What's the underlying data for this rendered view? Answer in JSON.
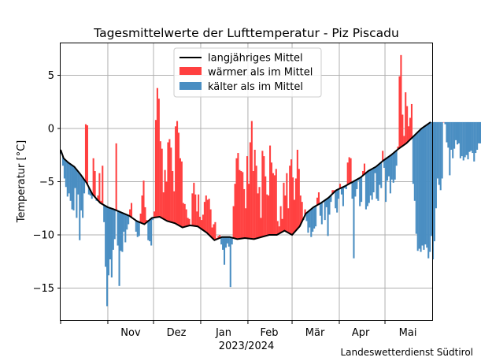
{
  "chart_data": {
    "type": "bar",
    "title": "Tagesmittelwerte der Lufttemperatur - Piz Piscadu",
    "xlabel": "2023/2024",
    "ylabel": "Temperatur [°C]",
    "ylim": [
      -18,
      8
    ],
    "yticks": [
      5,
      0,
      -5,
      -10,
      -15
    ],
    "ytick_labels": [
      "5",
      "0",
      "−5",
      "−10",
      "−15"
    ],
    "grid": true,
    "legend_position": "top-center",
    "x_start": "2023-10-01",
    "x_end": "2024-05-31",
    "month_boundaries": [
      "2023-11-01",
      "2023-12-01",
      "2024-01-01",
      "2024-02-01",
      "2024-03-01",
      "2024-04-01",
      "2024-05-01"
    ],
    "months": [
      {
        "label": "Nov",
        "date": "2023-11-16"
      },
      {
        "label": "Dez",
        "date": "2023-12-16"
      },
      {
        "label": "Jan",
        "date": "2024-01-16"
      },
      {
        "label": "Feb",
        "date": "2024-02-15"
      },
      {
        "label": "Mär",
        "date": "2024-03-16"
      },
      {
        "label": "Apr",
        "date": "2024-04-15"
      },
      {
        "label": "Mai",
        "date": "2024-05-16"
      }
    ],
    "legend": [
      {
        "label": "langjähriges Mittel",
        "color": "#000000"
      },
      {
        "label": "wärmer als im Mittel",
        "color": "#ff4040"
      },
      {
        "label": "kälter als im Mittel",
        "color": "#4a8ec2"
      }
    ],
    "colors": {
      "warm": "#ff4040",
      "cold": "#4a8ec2",
      "mean": "#000000"
    },
    "mean_curve": {
      "dates": [
        "2023-10-01",
        "2023-10-03",
        "2023-10-06",
        "2023-10-10",
        "2023-10-14",
        "2023-10-18",
        "2023-10-22",
        "2023-10-27",
        "2023-11-01",
        "2023-11-05",
        "2023-11-10",
        "2023-11-15",
        "2023-11-20",
        "2023-11-25",
        "2023-11-30",
        "2023-12-05",
        "2023-12-10",
        "2023-12-15",
        "2023-12-20",
        "2023-12-25",
        "2023-12-30",
        "2024-01-05",
        "2024-01-10",
        "2024-01-15",
        "2024-01-20",
        "2024-01-25",
        "2024-01-30",
        "2024-02-05",
        "2024-02-10",
        "2024-02-15",
        "2024-02-20",
        "2024-02-25",
        "2024-03-01",
        "2024-03-06",
        "2024-03-10",
        "2024-03-15",
        "2024-03-20",
        "2024-03-25",
        "2024-03-30",
        "2024-04-05",
        "2024-04-10",
        "2024-04-15",
        "2024-04-20",
        "2024-04-25",
        "2024-04-30",
        "2024-05-05",
        "2024-05-10",
        "2024-05-15",
        "2024-05-20",
        "2024-05-25",
        "2024-05-31"
      ],
      "values": [
        -2.0,
        -2.8,
        -3.2,
        -3.6,
        -4.3,
        -5.1,
        -6.2,
        -7.0,
        -7.4,
        -7.6,
        -7.9,
        -8.2,
        -8.7,
        -9.0,
        -8.4,
        -8.3,
        -8.7,
        -8.9,
        -9.3,
        -9.1,
        -9.2,
        -9.8,
        -10.5,
        -10.2,
        -10.2,
        -10.4,
        -10.3,
        -10.4,
        -10.2,
        -10.0,
        -10.0,
        -9.6,
        -10.0,
        -9.2,
        -8.0,
        -7.4,
        -7.0,
        -6.5,
        -5.8,
        -5.4,
        -5.0,
        -4.6,
        -4.0,
        -3.6,
        -3.0,
        -2.5,
        -1.9,
        -1.4,
        -0.7,
        0.0,
        0.6
      ]
    },
    "daily": {
      "start": "2023-10-01",
      "values": [
        -2.4,
        -3.5,
        -4.7,
        -5.5,
        -6.4,
        -6.1,
        -6.8,
        -7.6,
        -7.7,
        -5.6,
        -8.4,
        -6.2,
        -10.5,
        -7.7,
        -8.4,
        -6.1,
        0.4,
        0.3,
        -6.2,
        -6.3,
        -6.6,
        -2.8,
        -4.0,
        -6.8,
        -6.3,
        -4.2,
        -6.8,
        -3.5,
        -8.8,
        -13.0,
        -16.7,
        -13.8,
        -12.3,
        -14.0,
        -11.4,
        -10.4,
        -1.4,
        -11.0,
        -14.8,
        -11.5,
        -11.6,
        -9.7,
        -10.7,
        -9.5,
        -9.0,
        -7.6,
        -7.0,
        -8.4,
        -8.6,
        -9.7,
        -10.2,
        -10.1,
        -8.0,
        -6.3,
        -4.9,
        -7.4,
        -8.6,
        -10.5,
        -10.6,
        -11.0,
        -8.6,
        -7.8,
        0.8,
        3.8,
        2.8,
        -1.2,
        -1.9,
        -6.0,
        -3.9,
        -5.0,
        -1.3,
        -1.0,
        -1.8,
        -4.0,
        -5.9,
        0.2,
        0.7,
        -0.4,
        -2.8,
        -3.1,
        -7.0,
        -7.1,
        -7.6,
        -8.4,
        -8.5,
        -9.2,
        -6.1,
        -5.1,
        -6.2,
        -7.8,
        -6.2,
        -8.3,
        -8.6,
        -8.1,
        -6.9,
        -6.3,
        -6.7,
        -6.6,
        -7.6,
        -9.3,
        -9.0,
        -8.8,
        -10.3,
        -10.1,
        -10.0,
        -10.9,
        -11.4,
        -12.8,
        -11.2,
        -10.8,
        -11.1,
        -14.9,
        -10.9,
        -7.3,
        -5.2,
        -2.8,
        -2.3,
        -3.9,
        -4.0,
        -4.1,
        -5.7,
        -7.5,
        -2.6,
        -5.2,
        -1.3,
        0.7,
        -4.0,
        -2.0,
        -3.5,
        -6.1,
        -5.5,
        -8.4,
        -2.1,
        -2.6,
        -4.5,
        -6.2,
        -6.3,
        -1.6,
        -3.2,
        -4.2,
        -4.4,
        -3.8,
        -8.7,
        -9.2,
        -7.3,
        -8.5,
        -5.1,
        -6.3,
        -4.2,
        -7.5,
        -3.5,
        -2.9,
        -4.6,
        -6.7,
        -4.7,
        -2.0,
        -3.8,
        -6.3,
        -6.9,
        -8.6,
        -7.6,
        -8.7,
        -9.8,
        -9.3,
        -10.2,
        -9.7,
        -9.4,
        -9.2,
        -6.5,
        -6.0,
        -8.2,
        -9.0,
        -6.8,
        -8.6,
        -7.4,
        -10.1,
        -8.1,
        -6.9,
        -5.8,
        -5.8,
        -7.5,
        -7.9,
        -6.6,
        -5.2,
        -6.2,
        -7.3,
        -5.6,
        -5.7,
        -3.2,
        -2.7,
        -2.8,
        -6.6,
        -12.2,
        -6.4,
        -5.7,
        -4.9,
        -7.3,
        -6.9,
        -4.0,
        -3.3,
        -7.6,
        -7.3,
        -7.0,
        -6.3,
        -6.7,
        -6.0,
        -4.2,
        -6.6,
        -6.8,
        -5.3,
        -5.6,
        -2.1,
        -3.7,
        -6.9,
        -4.9,
        -4.5,
        -6.1,
        -4.8,
        -5.1,
        -4.8,
        -3.5,
        -1.7,
        4.9,
        6.9,
        1.3,
        -0.7,
        3.4,
        2.1,
        0.2,
        1.0,
        2.3,
        -5.2,
        -6.8,
        -9.9,
        -11.5,
        -11.3,
        -11.6,
        -11.0,
        -11.4,
        -10.9,
        -11.2,
        -12.2,
        -11.6,
        -10.1,
        -12.3,
        -10.6,
        -7.5,
        -4.7,
        -5.3,
        -5.8,
        -4.7,
        0.6,
        0.4,
        -1.3,
        -1.8,
        -4.4,
        -2.0,
        -2.8,
        -1.9,
        -1.1,
        -1.5,
        -1.4,
        -2.8,
        -2.6,
        -3.0,
        -2.7,
        -2.5,
        -2.9,
        -2.2,
        -2.1,
        -2.3,
        -3.1,
        -2.3,
        -2.0,
        -1.4,
        -1.4,
        -0.9,
        -0.3,
        -0.5,
        0.0,
        0.3,
        -0.4,
        0.4,
        0.8,
        -0.1,
        0.6,
        1.1,
        0.5,
        0.2,
        1.0,
        0.8,
        0.3,
        0.2,
        1.0,
        1.0,
        0.5,
        0.7,
        0.3,
        0.3
      ]
    }
  },
  "credit": "Landeswetterdienst Südtirol"
}
